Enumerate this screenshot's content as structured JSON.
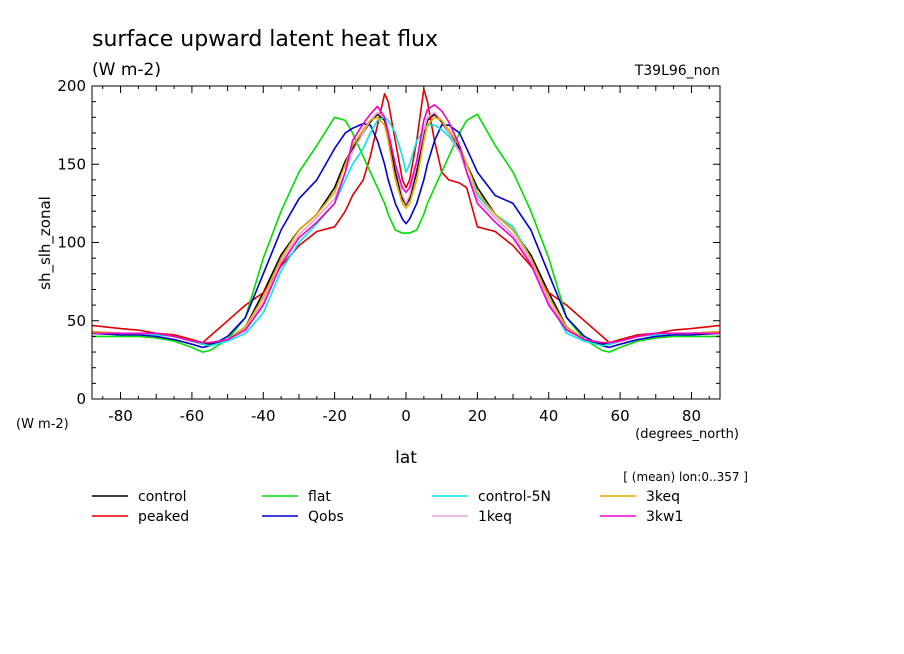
{
  "chart_data": {
    "type": "line",
    "title": "surface upward latent heat flux",
    "subtitle": "(W m-2)",
    "experiment": "T39L96_non",
    "xlabel": "lat",
    "xunits": "(degrees_north)",
    "ylabel": "sh_slh_zonal",
    "yunits": "(W m-2)",
    "note": "[ (mean) lon:0..357 ]",
    "xlim": [
      -88,
      88
    ],
    "ylim": [
      0,
      200
    ],
    "xticks": [
      -80,
      -60,
      -40,
      -20,
      0,
      20,
      40,
      60,
      80
    ],
    "yticks": [
      0,
      50,
      100,
      150,
      200
    ],
    "grid": false,
    "legend_position": "bottom",
    "x": [
      -88,
      -80,
      -75,
      -70,
      -65,
      -60,
      -57,
      -55,
      -50,
      -45,
      -40,
      -35,
      -30,
      -25,
      -20,
      -17,
      -15,
      -12,
      -10,
      -8,
      -6,
      -5,
      -3,
      -1,
      0,
      1,
      3,
      5,
      6,
      8,
      10,
      12,
      15,
      17,
      20,
      25,
      30,
      35,
      40,
      45,
      50,
      55,
      57,
      60,
      65,
      70,
      75,
      80,
      88
    ],
    "series": [
      {
        "name": "control",
        "color": "#000000",
        "values": [
          43,
          42,
          42,
          42,
          40,
          37,
          35,
          35,
          38,
          46,
          68,
          92,
          108,
          118,
          135,
          152,
          160,
          170,
          177,
          182,
          178,
          170,
          145,
          128,
          124,
          128,
          145,
          170,
          178,
          182,
          177,
          170,
          160,
          150,
          135,
          118,
          108,
          92,
          68,
          46,
          38,
          35,
          35,
          37,
          40,
          42,
          42,
          42,
          43
        ]
      },
      {
        "name": "peaked",
        "color": "#dd0000",
        "values": [
          47,
          45,
          44,
          42,
          41,
          38,
          36,
          40,
          50,
          60,
          68,
          85,
          98,
          107,
          110,
          120,
          130,
          140,
          155,
          175,
          195,
          190,
          165,
          140,
          135,
          140,
          165,
          198,
          190,
          165,
          145,
          140,
          138,
          135,
          110,
          107,
          98,
          85,
          68,
          60,
          50,
          40,
          36,
          38,
          41,
          42,
          44,
          45,
          47
        ]
      },
      {
        "name": "flat",
        "color": "#00dd00",
        "values": [
          40,
          40,
          40,
          39,
          37,
          33,
          30,
          31,
          38,
          52,
          90,
          120,
          145,
          162,
          180,
          178,
          170,
          155,
          145,
          135,
          125,
          118,
          108,
          106,
          106,
          106,
          108,
          118,
          125,
          135,
          145,
          155,
          170,
          178,
          182,
          162,
          145,
          120,
          90,
          52,
          38,
          31,
          30,
          33,
          37,
          39,
          40,
          40,
          40
        ]
      },
      {
        "name": "Qobs",
        "color": "#0000cc",
        "values": [
          42,
          41,
          41,
          40,
          38,
          35,
          33,
          34,
          40,
          52,
          80,
          108,
          128,
          140,
          160,
          170,
          173,
          176,
          175,
          165,
          150,
          140,
          125,
          115,
          112,
          115,
          125,
          140,
          150,
          165,
          175,
          175,
          170,
          160,
          145,
          130,
          125,
          108,
          80,
          52,
          40,
          34,
          33,
          35,
          38,
          40,
          41,
          41,
          42
        ]
      },
      {
        "name": "control-5N",
        "color": "#00e8e8",
        "values": [
          43,
          42,
          42,
          41,
          40,
          37,
          35,
          34,
          37,
          42,
          55,
          82,
          100,
          112,
          125,
          140,
          150,
          160,
          170,
          178,
          180,
          178,
          170,
          155,
          145,
          150,
          165,
          172,
          175,
          175,
          172,
          168,
          158,
          145,
          130,
          118,
          110,
          90,
          62,
          42,
          37,
          34,
          35,
          37,
          40,
          41,
          42,
          42,
          43
        ]
      },
      {
        "name": "1keq",
        "color": "#e8a0d8",
        "values": [
          43,
          42,
          42,
          42,
          40,
          37,
          36,
          36,
          38,
          45,
          62,
          88,
          105,
          116,
          128,
          145,
          158,
          170,
          178,
          183,
          180,
          172,
          150,
          130,
          125,
          130,
          150,
          172,
          180,
          183,
          178,
          170,
          158,
          145,
          128,
          116,
          105,
          88,
          62,
          45,
          38,
          36,
          36,
          37,
          40,
          42,
          42,
          42,
          43
        ]
      },
      {
        "name": "3keq",
        "color": "#e8a800",
        "values": [
          43,
          42,
          42,
          42,
          40,
          37,
          36,
          36,
          38,
          46,
          65,
          90,
          108,
          118,
          132,
          150,
          162,
          172,
          178,
          180,
          175,
          165,
          140,
          125,
          122,
          125,
          140,
          165,
          175,
          180,
          178,
          172,
          162,
          150,
          132,
          118,
          108,
          90,
          65,
          46,
          38,
          36,
          36,
          37,
          40,
          42,
          42,
          42,
          43
        ]
      },
      {
        "name": "3kw1",
        "color": "#ee00cc",
        "values": [
          42,
          42,
          42,
          42,
          40,
          37,
          36,
          36,
          38,
          44,
          60,
          86,
          103,
          113,
          125,
          145,
          165,
          176,
          182,
          187,
          180,
          170,
          150,
          135,
          132,
          135,
          152,
          178,
          185,
          188,
          184,
          177,
          162,
          145,
          125,
          113,
          103,
          86,
          60,
          44,
          38,
          36,
          36,
          37,
          40,
          42,
          42,
          42,
          42
        ]
      }
    ]
  }
}
